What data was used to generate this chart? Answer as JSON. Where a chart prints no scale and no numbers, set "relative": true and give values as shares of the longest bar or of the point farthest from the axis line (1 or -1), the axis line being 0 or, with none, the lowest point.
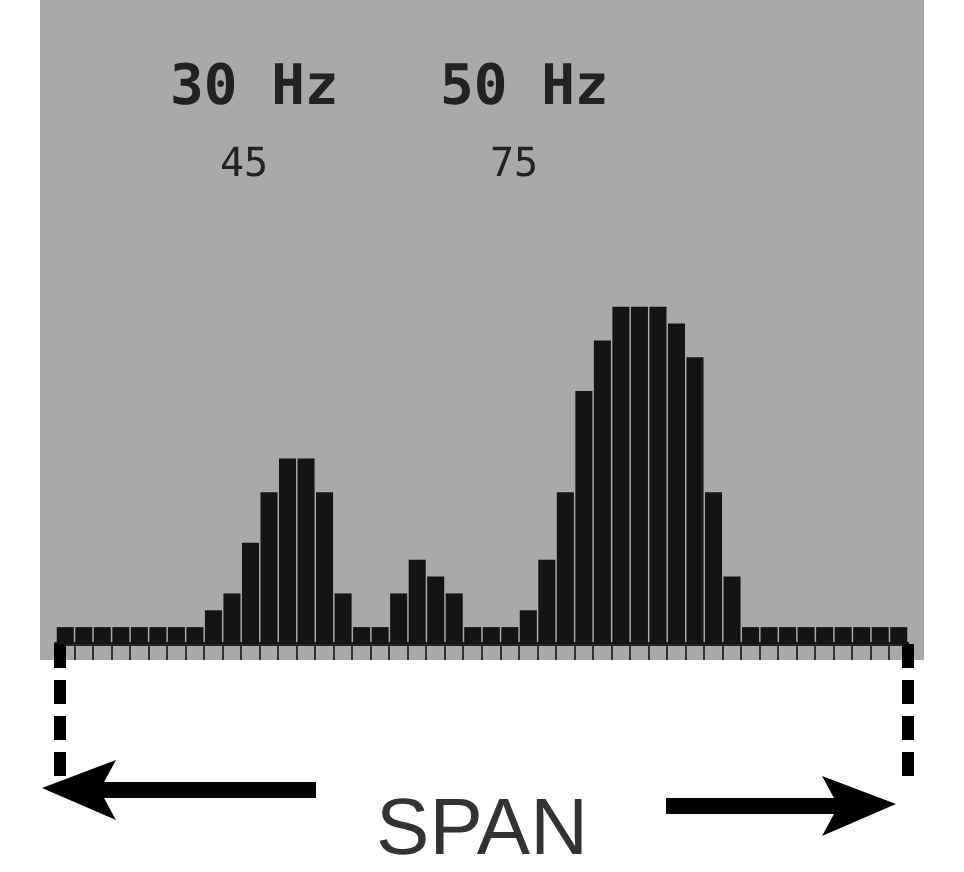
{
  "chart_data": {
    "type": "bar",
    "relative": true,
    "xlabel": "SPAN",
    "annotations": [
      "30 Hz",
      "45",
      "50 Hz",
      "75"
    ],
    "categories": [
      null,
      null,
      null,
      null,
      null,
      null,
      null,
      null,
      null,
      null,
      null,
      null,
      null,
      null,
      null,
      null,
      null,
      null,
      null,
      null,
      null,
      null,
      null,
      null,
      null,
      null,
      null,
      null,
      null,
      null,
      null,
      null,
      null,
      null,
      null,
      null,
      null,
      null,
      null,
      null,
      null,
      null,
      null,
      null,
      null,
      null
    ],
    "values": [
      0.05,
      0.05,
      0.05,
      0.05,
      0.05,
      0.05,
      0.05,
      0.05,
      0.1,
      0.15,
      0.3,
      0.45,
      0.55,
      0.55,
      0.45,
      0.15,
      0.05,
      0.05,
      0.15,
      0.25,
      0.2,
      0.15,
      0.05,
      0.05,
      0.05,
      0.1,
      0.25,
      0.45,
      0.75,
      0.9,
      1,
      1,
      1,
      0.95,
      0.85,
      0.45,
      0.2,
      0.05,
      0.05,
      0.05,
      0.05,
      0.05,
      0.05,
      0.05,
      0.05,
      0.05
    ],
    "color": "#141414",
    "tick_labels": false,
    "grid": false,
    "legend": false
  }
}
